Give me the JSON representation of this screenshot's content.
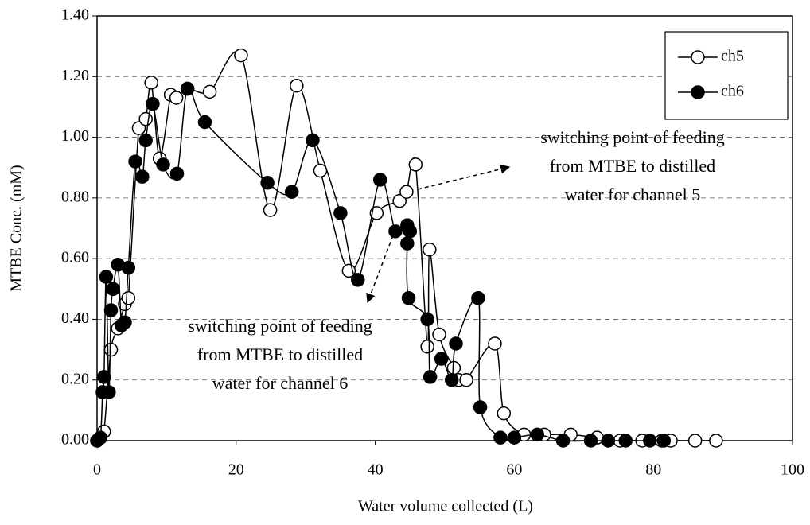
{
  "chart_data": {
    "type": "line",
    "x_label": "Water volume collected (L)",
    "y_label": "MTBE Conc. (mM)",
    "xlim": [
      0,
      100
    ],
    "xticks": [
      0,
      20,
      40,
      60,
      80,
      100
    ],
    "ylim": [
      0,
      1.4
    ],
    "yticks": [
      {
        "value": 0,
        "label": "0.00"
      },
      {
        "value": 0.2,
        "label": "0.20"
      },
      {
        "value": 0.4,
        "label": "0.40"
      },
      {
        "value": 0.6,
        "label": "0.60"
      },
      {
        "value": 0.8,
        "label": "0.80"
      },
      {
        "value": 1.0,
        "label": "1.00"
      },
      {
        "value": 1.2,
        "label": "1.20"
      },
      {
        "value": 1.4,
        "label": "1.40"
      }
    ],
    "grid": true,
    "legend": "top-right",
    "series": [
      {
        "name": "ch5",
        "color": "#000000",
        "marker": "open",
        "x": [
          0,
          0.5,
          1,
          2,
          3,
          4,
          4.5,
          6,
          7,
          7.8,
          9,
          10.6,
          11.4,
          13,
          16.2,
          20.7,
          24.9,
          28.7,
          32.1,
          36.2,
          40.2,
          43.5,
          44.5,
          45.8,
          47.5,
          47.8,
          49.2,
          51.3,
          52,
          53.1,
          57.2,
          58.5,
          61.4,
          64.3,
          68.1,
          71.9,
          75.2,
          78.4,
          81.2,
          82.5,
          86,
          89
        ],
        "values": [
          0,
          0.01,
          0.03,
          0.3,
          0.37,
          0.45,
          0.47,
          1.03,
          1.06,
          1.18,
          0.93,
          1.14,
          1.13,
          1.16,
          1.15,
          1.27,
          0.76,
          1.17,
          0.89,
          0.56,
          0.75,
          0.79,
          0.82,
          0.91,
          0.31,
          0.63,
          0.35,
          0.24,
          0.2,
          0.2,
          0.32,
          0.09,
          0.02,
          0.02,
          0.02,
          0.01,
          0,
          0,
          0,
          0,
          0,
          0
        ]
      },
      {
        "name": "ch6",
        "color": "#000000",
        "marker": "filled",
        "x": [
          0,
          0.5,
          0.8,
          1,
          1.3,
          1.7,
          2,
          2.3,
          3,
          3.5,
          4,
          4.5,
          5.5,
          6.5,
          7,
          8,
          9.5,
          11.5,
          13,
          15.5,
          24.5,
          28,
          31,
          35,
          37.5,
          40.7,
          42.9,
          44.6,
          45,
          44.6,
          44.8,
          47.5,
          47.9,
          49.5,
          51,
          51.6,
          54.8,
          55.1,
          58,
          60,
          63.3,
          67,
          71,
          73.5,
          76,
          79.5,
          81.5
        ],
        "values": [
          0,
          0.01,
          0.16,
          0.21,
          0.54,
          0.16,
          0.43,
          0.5,
          0.58,
          0.38,
          0.39,
          0.57,
          0.92,
          0.87,
          0.99,
          1.11,
          0.91,
          0.88,
          1.16,
          1.05,
          0.85,
          0.82,
          0.99,
          0.75,
          0.53,
          0.86,
          0.69,
          0.71,
          0.69,
          0.65,
          0.47,
          0.4,
          0.21,
          0.27,
          0.2,
          0.32,
          0.47,
          0.11,
          0.01,
          0.01,
          0.02,
          0,
          0,
          0,
          0,
          0,
          0
        ]
      }
    ],
    "annotations": [
      {
        "lines": [
          "switching point of feeding",
          "from MTBE to distilled",
          "water for channel 5"
        ]
      },
      {
        "lines": [
          "switching point of feeding",
          "from MTBE to distilled",
          "water for channel 6"
        ]
      }
    ]
  }
}
